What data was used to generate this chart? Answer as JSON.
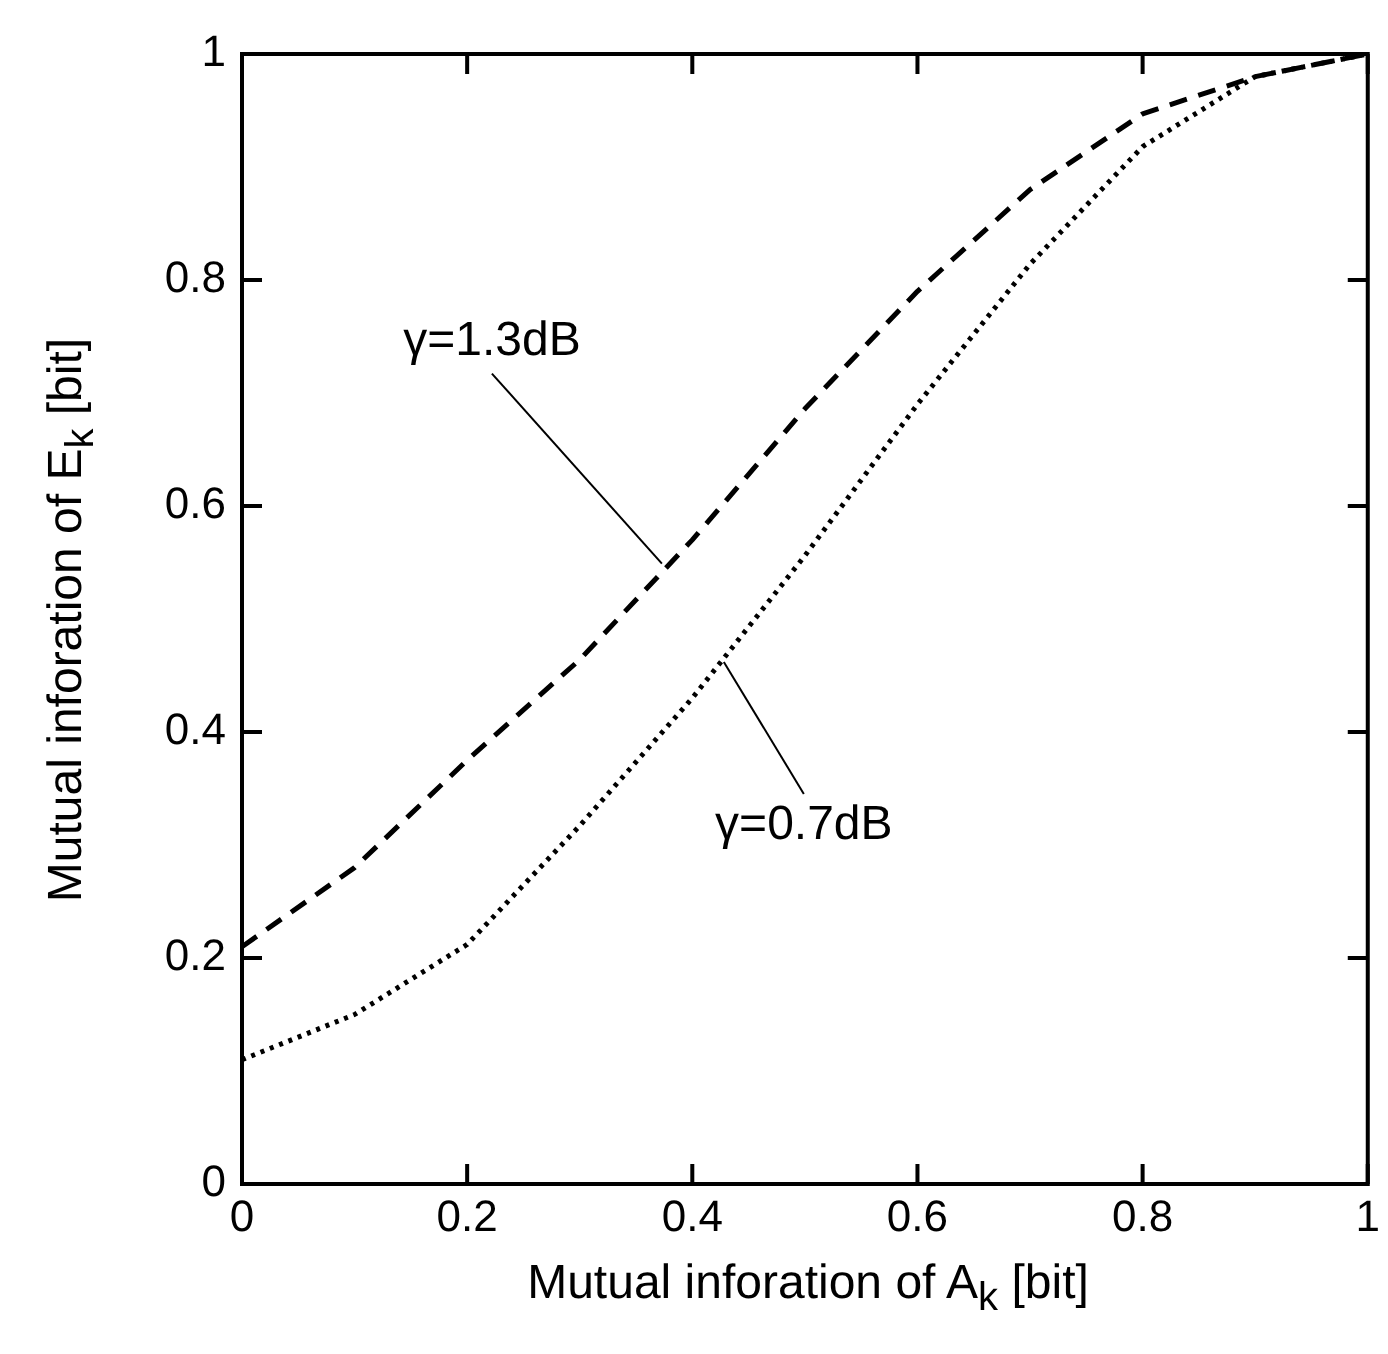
{
  "chart_data": {
    "type": "line",
    "xlabel": "Mutual inforation of A$_{k}$ [bit]",
    "ylabel": "Mutual inforation of E$_{k}$ [bit]",
    "xlim": [
      0,
      1
    ],
    "ylim": [
      0,
      1
    ],
    "xticks": [
      0,
      0.2,
      0.4,
      0.6,
      0.8,
      1
    ],
    "yticks": [
      0,
      0.2,
      0.4,
      0.6,
      0.8,
      1
    ],
    "grid": false,
    "legend": false,
    "marker": "none",
    "x": [
      0,
      0.1,
      0.2,
      0.3,
      0.4,
      0.5,
      0.6,
      0.7,
      0.8,
      0.9,
      1
    ],
    "series": [
      {
        "color": "#000000",
        "line_style": "dashed",
        "values": [
          0.21,
          0.28,
          0.375,
          0.464,
          0.57,
          0.686,
          0.79,
          0.88,
          0.947,
          0.98,
          1
        ]
      },
      {
        "color": "#000000",
        "line_style": "dotted",
        "values": [
          0.11,
          0.15,
          0.212,
          0.317,
          0.43,
          0.556,
          0.69,
          0.814,
          0.918,
          0.98,
          1
        ]
      }
    ],
    "annotations": [
      {
        "text": "γ=1.3dB",
        "x": 0.373,
        "y": 0.549
      },
      {
        "text": "γ=0.7dB",
        "x": 0.428,
        "y": 0.462
      }
    ]
  }
}
